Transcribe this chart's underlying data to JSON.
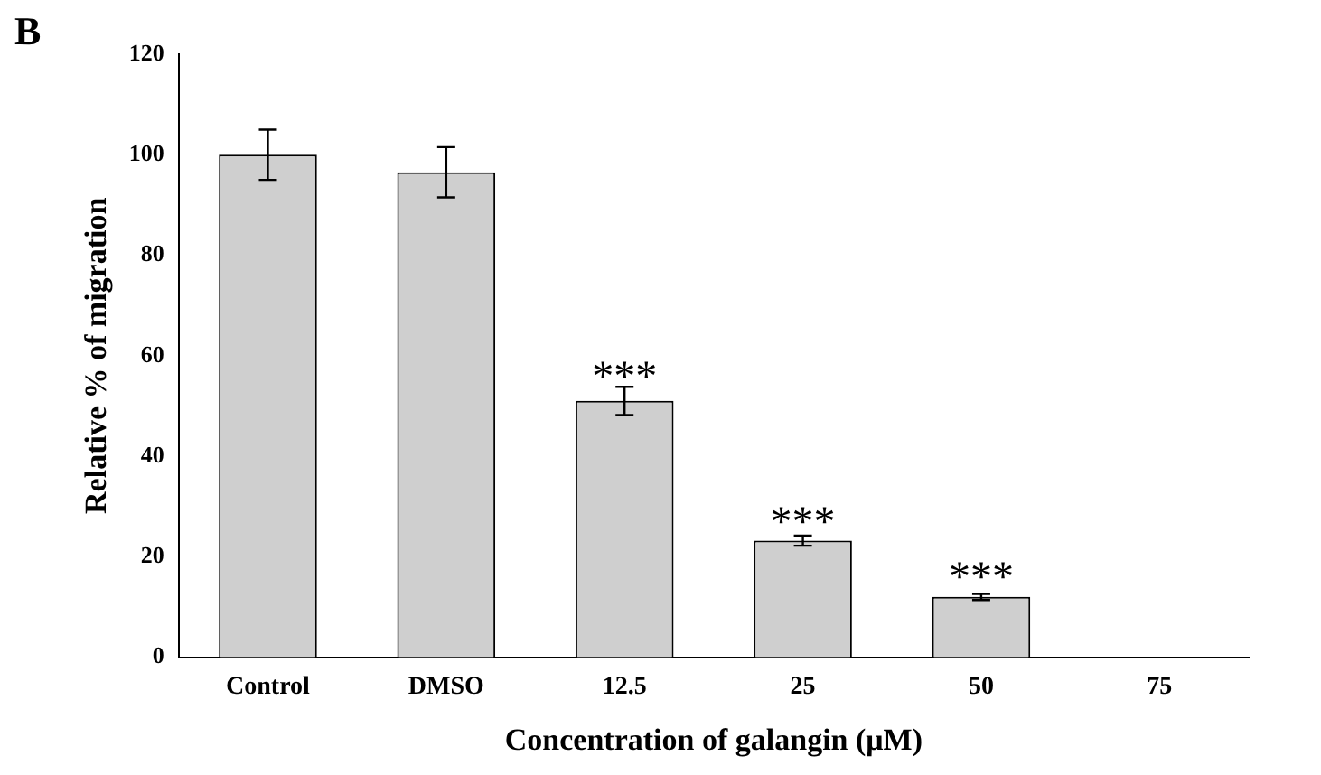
{
  "chart_data": {
    "type": "bar",
    "xlabel": "Concentration of galangin (μM)",
    "ylabel": "Relative % of migration",
    "categories": [
      "Control",
      "DMSO",
      "12.5",
      "25",
      "50",
      "75"
    ],
    "values": [
      100,
      96.5,
      51,
      23.2,
      12,
      null
    ],
    "errors": [
      5,
      5,
      2.8,
      1,
      0.6,
      null
    ],
    "color": "#cfcfcf",
    "ylim": [
      0,
      120
    ],
    "yticks": [
      0,
      20,
      40,
      60,
      80,
      100,
      120
    ],
    "grid": false,
    "legend": false,
    "annotations": [
      "B",
      {
        "text": "***",
        "x": "12.5",
        "y": 54
      },
      {
        "text": "***",
        "x": "25",
        "y": 25
      },
      {
        "text": "***",
        "x": "50",
        "y": 14
      }
    ]
  }
}
